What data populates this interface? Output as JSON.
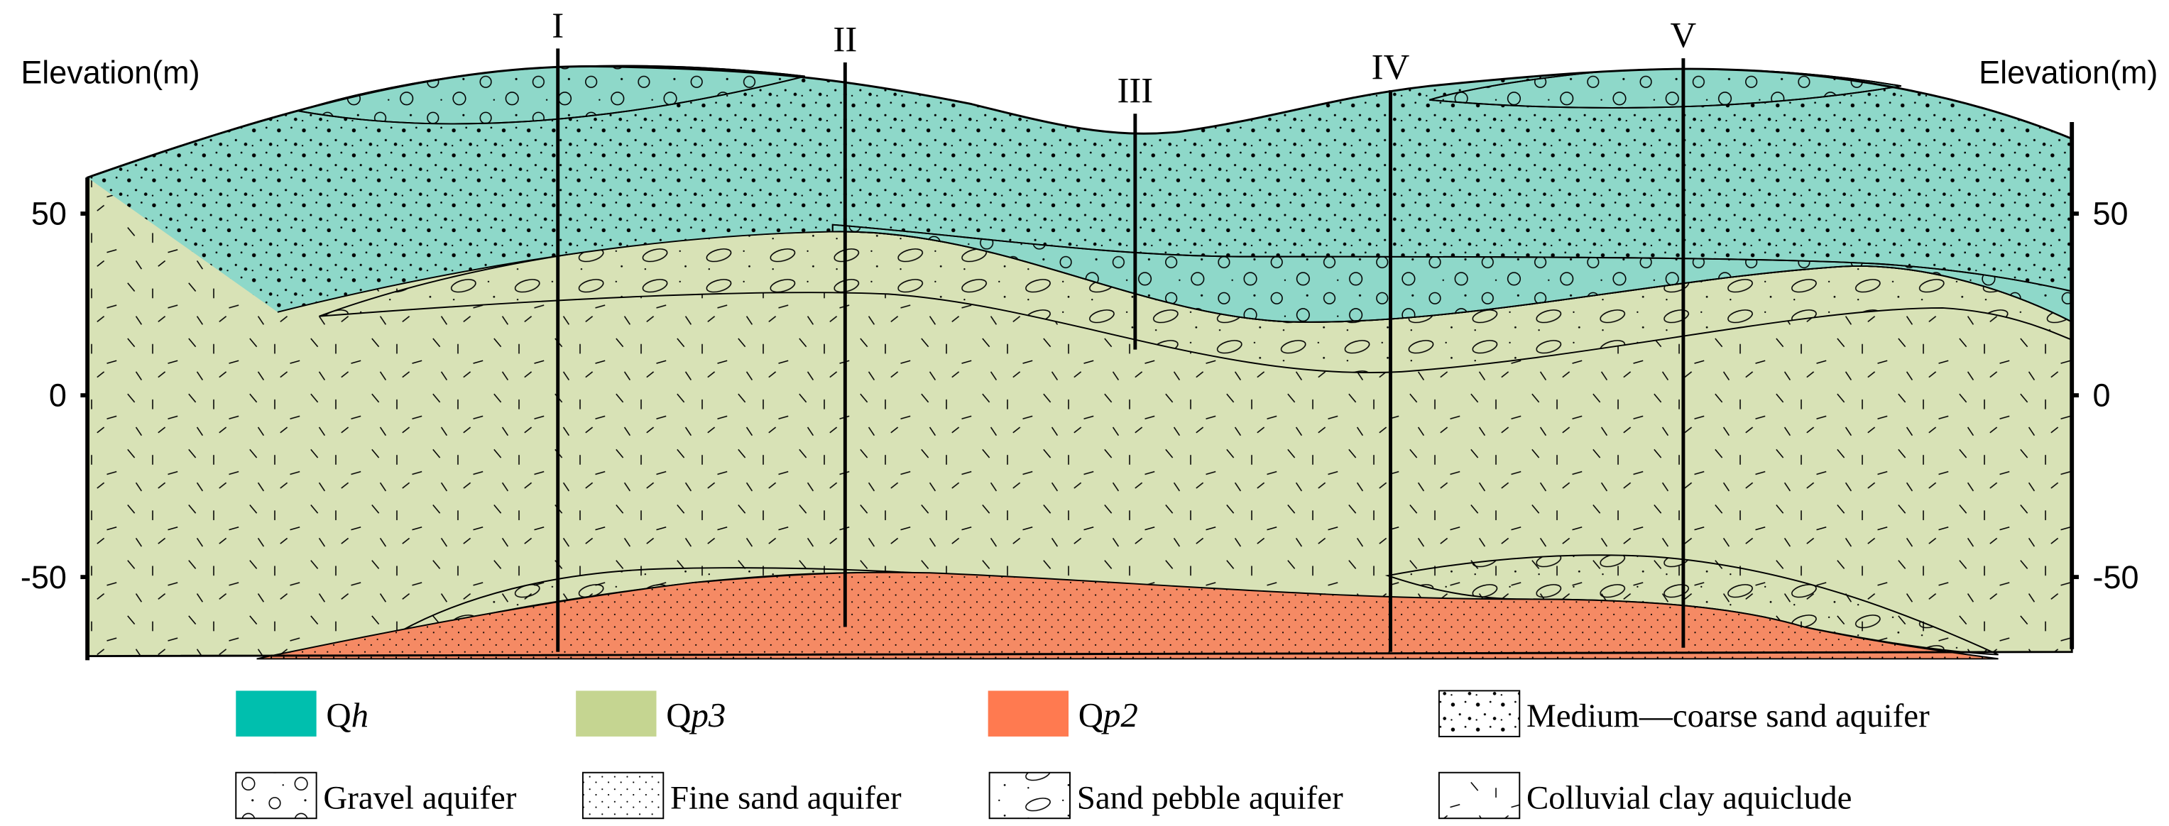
{
  "axes": {
    "left": {
      "label": "Elevation(m)",
      "ticks": [
        50,
        0,
        -50
      ]
    },
    "right": {
      "label": "Elevation(m)",
      "ticks": [
        50,
        0,
        -50
      ]
    }
  },
  "boreholes": [
    {
      "label": "I"
    },
    {
      "label": "II"
    },
    {
      "label": "III"
    },
    {
      "label": "IV"
    },
    {
      "label": "V"
    }
  ],
  "legend": {
    "strata": [
      {
        "parts": [
          "Q",
          "h"
        ],
        "color": "#00bfae"
      },
      {
        "parts": [
          "Q",
          "p3"
        ],
        "color": "#c5d591"
      },
      {
        "parts": [
          "Q",
          "p2"
        ],
        "color": "#ff7a50"
      }
    ],
    "lithology": [
      {
        "label": "Medium—coarse sand aquifer"
      },
      {
        "label": "Gravel aquifer"
      },
      {
        "label": "Fine sand aquifer"
      },
      {
        "label": "Sand pebble aquifer"
      },
      {
        "label": "Colluvial clay aquiclude"
      }
    ]
  }
}
